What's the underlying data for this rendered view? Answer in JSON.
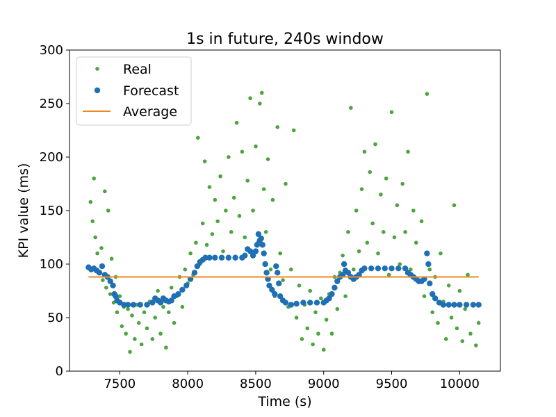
{
  "colors": {
    "real": "#4da340",
    "forecast": "#1f6fb4",
    "average": "#ef8a22",
    "axis": "#000000"
  },
  "chart_data": {
    "type": "scatter",
    "title": "1s in future, 240s window",
    "xlabel": "Time (s)",
    "ylabel": "KPI value (ms)",
    "xlim": [
      7130,
      10300
    ],
    "ylim": [
      0,
      300
    ],
    "xticks": [
      7500,
      8000,
      8500,
      9000,
      9500,
      10000
    ],
    "yticks": [
      0,
      50,
      100,
      150,
      200,
      250,
      300
    ],
    "legend_position": "top-left",
    "grid": false,
    "series": [
      {
        "name": "Real",
        "kind": "points",
        "points": [
          [
            7270,
            97
          ],
          [
            7285,
            158
          ],
          [
            7300,
            140
          ],
          [
            7310,
            180
          ],
          [
            7320,
            125
          ],
          [
            7335,
            110
          ],
          [
            7350,
            92
          ],
          [
            7365,
            115
          ],
          [
            7375,
            85
          ],
          [
            7390,
            168
          ],
          [
            7400,
            78
          ],
          [
            7415,
            150
          ],
          [
            7430,
            72
          ],
          [
            7440,
            105
          ],
          [
            7455,
            64
          ],
          [
            7470,
            88
          ],
          [
            7480,
            55
          ],
          [
            7500,
            70
          ],
          [
            7515,
            42
          ],
          [
            7530,
            60
          ],
          [
            7545,
            35
          ],
          [
            7560,
            58
          ],
          [
            7575,
            18
          ],
          [
            7590,
            52
          ],
          [
            7610,
            30
          ],
          [
            7625,
            62
          ],
          [
            7640,
            45
          ],
          [
            7660,
            25
          ],
          [
            7680,
            55
          ],
          [
            7700,
            40
          ],
          [
            7720,
            65
          ],
          [
            7740,
            30
          ],
          [
            7760,
            50
          ],
          [
            7780,
            75
          ],
          [
            7800,
            35
          ],
          [
            7820,
            60
          ],
          [
            7840,
            22
          ],
          [
            7860,
            55
          ],
          [
            7880,
            78
          ],
          [
            7900,
            45
          ],
          [
            7920,
            70
          ],
          [
            7940,
            88
          ],
          [
            7960,
            60
          ],
          [
            7980,
            95
          ],
          [
            8000,
            82
          ],
          [
            8020,
            110
          ],
          [
            8040,
            90
          ],
          [
            8060,
            120
          ],
          [
            8075,
            218
          ],
          [
            8090,
            100
          ],
          [
            8110,
            138
          ],
          [
            8125,
            196
          ],
          [
            8140,
            118
          ],
          [
            8160,
            172
          ],
          [
            8180,
            128
          ],
          [
            8200,
            160
          ],
          [
            8220,
            140
          ],
          [
            8240,
            182
          ],
          [
            8260,
            112
          ],
          [
            8280,
            150
          ],
          [
            8300,
            200
          ],
          [
            8320,
            130
          ],
          [
            8340,
            162
          ],
          [
            8360,
            232
          ],
          [
            8380,
            145
          ],
          [
            8400,
            205
          ],
          [
            8420,
            125
          ],
          [
            8440,
            178
          ],
          [
            8460,
            255
          ],
          [
            8480,
            150
          ],
          [
            8500,
            210
          ],
          [
            8515,
            120
          ],
          [
            8530,
            250
          ],
          [
            8545,
            260
          ],
          [
            8560,
            170
          ],
          [
            8575,
            130
          ],
          [
            8590,
            198
          ],
          [
            8610,
            95
          ],
          [
            8625,
            160
          ],
          [
            8640,
            70
          ],
          [
            8660,
            228
          ],
          [
            8680,
            110
          ],
          [
            8700,
            85
          ],
          [
            8720,
            175
          ],
          [
            8740,
            60
          ],
          [
            8760,
            95
          ],
          [
            8780,
            225
          ],
          [
            8800,
            50
          ],
          [
            8820,
            80
          ],
          [
            8840,
            30
          ],
          [
            8860,
            62
          ],
          [
            8880,
            40
          ],
          [
            8900,
            75
          ],
          [
            8920,
            25
          ],
          [
            8940,
            55
          ],
          [
            8960,
            35
          ],
          [
            8980,
            68
          ],
          [
            9000,
            20
          ],
          [
            9020,
            48
          ],
          [
            9040,
            72
          ],
          [
            9060,
            35
          ],
          [
            9080,
            88
          ],
          [
            9100,
            58
          ],
          [
            9120,
            92
          ],
          [
            9140,
            108
          ],
          [
            9160,
            70
          ],
          [
            9180,
            130
          ],
          [
            9200,
            246
          ],
          [
            9220,
            95
          ],
          [
            9240,
            150
          ],
          [
            9260,
            112
          ],
          [
            9280,
            170
          ],
          [
            9300,
            205
          ],
          [
            9320,
            120
          ],
          [
            9340,
            186
          ],
          [
            9360,
            138
          ],
          [
            9380,
            212
          ],
          [
            9400,
            110
          ],
          [
            9420,
            165
          ],
          [
            9440,
            130
          ],
          [
            9460,
            180
          ],
          [
            9480,
            90
          ],
          [
            9500,
            242
          ],
          [
            9520,
            125
          ],
          [
            9540,
            155
          ],
          [
            9560,
            100
          ],
          [
            9580,
            175
          ],
          [
            9600,
            130
          ],
          [
            9620,
            205
          ],
          [
            9640,
            95
          ],
          [
            9660,
            150
          ],
          [
            9680,
            120
          ],
          [
            9700,
            85
          ],
          [
            9720,
            140
          ],
          [
            9740,
            70
          ],
          [
            9760,
            259
          ],
          [
            9780,
            95
          ],
          [
            9800,
            55
          ],
          [
            9820,
            88
          ],
          [
            9840,
            45
          ],
          [
            9860,
            110
          ],
          [
            9880,
            65
          ],
          [
            9900,
            30
          ],
          [
            9920,
            80
          ],
          [
            9940,
            50
          ],
          [
            9960,
            155
          ],
          [
            9980,
            40
          ],
          [
            10000,
            75
          ],
          [
            10020,
            28
          ],
          [
            10040,
            58
          ],
          [
            10060,
            90
          ],
          [
            10080,
            35
          ],
          [
            10100,
            62
          ],
          [
            10120,
            24
          ],
          [
            10140,
            45
          ]
        ]
      },
      {
        "name": "Forecast",
        "kind": "points",
        "points": [
          [
            7270,
            97
          ],
          [
            7290,
            95
          ],
          [
            7310,
            96
          ],
          [
            7330,
            94
          ],
          [
            7350,
            92
          ],
          [
            7370,
            98
          ],
          [
            7390,
            90
          ],
          [
            7410,
            88
          ],
          [
            7430,
            84
          ],
          [
            7450,
            80
          ],
          [
            7460,
            72
          ],
          [
            7470,
            70
          ],
          [
            7480,
            66
          ],
          [
            7500,
            64
          ],
          [
            7530,
            62
          ],
          [
            7560,
            62
          ],
          [
            7600,
            62
          ],
          [
            7650,
            62
          ],
          [
            7700,
            62
          ],
          [
            7740,
            64
          ],
          [
            7760,
            68
          ],
          [
            7780,
            66
          ],
          [
            7800,
            64
          ],
          [
            7820,
            68
          ],
          [
            7840,
            66
          ],
          [
            7860,
            65
          ],
          [
            7880,
            66
          ],
          [
            7900,
            70
          ],
          [
            7930,
            72
          ],
          [
            7960,
            76
          ],
          [
            7990,
            80
          ],
          [
            8020,
            86
          ],
          [
            8050,
            92
          ],
          [
            8070,
            98
          ],
          [
            8090,
            102
          ],
          [
            8110,
            104
          ],
          [
            8130,
            106
          ],
          [
            8160,
            106
          ],
          [
            8200,
            106
          ],
          [
            8250,
            106
          ],
          [
            8300,
            106
          ],
          [
            8350,
            106
          ],
          [
            8400,
            106
          ],
          [
            8420,
            108
          ],
          [
            8440,
            114
          ],
          [
            8460,
            112
          ],
          [
            8480,
            108
          ],
          [
            8500,
            112
          ],
          [
            8510,
            118
          ],
          [
            8520,
            128
          ],
          [
            8530,
            122
          ],
          [
            8540,
            124
          ],
          [
            8550,
            118
          ],
          [
            8560,
            110
          ],
          [
            8570,
            100
          ],
          [
            8580,
            92
          ],
          [
            8590,
            86
          ],
          [
            8600,
            80
          ],
          [
            8620,
            76
          ],
          [
            8640,
            72
          ],
          [
            8650,
            98
          ],
          [
            8660,
            92
          ],
          [
            8670,
            82
          ],
          [
            8680,
            70
          ],
          [
            8700,
            66
          ],
          [
            8720,
            64
          ],
          [
            8760,
            62
          ],
          [
            8800,
            63
          ],
          [
            8850,
            64
          ],
          [
            8900,
            64
          ],
          [
            8950,
            64
          ],
          [
            9000,
            64
          ],
          [
            9020,
            66
          ],
          [
            9040,
            68
          ],
          [
            9060,
            72
          ],
          [
            9080,
            78
          ],
          [
            9100,
            84
          ],
          [
            9120,
            88
          ],
          [
            9140,
            90
          ],
          [
            9150,
            100
          ],
          [
            9160,
            94
          ],
          [
            9180,
            92
          ],
          [
            9200,
            88
          ],
          [
            9220,
            86
          ],
          [
            9240,
            88
          ],
          [
            9260,
            90
          ],
          [
            9280,
            94
          ],
          [
            9300,
            96
          ],
          [
            9350,
            96
          ],
          [
            9400,
            96
          ],
          [
            9450,
            96
          ],
          [
            9500,
            96
          ],
          [
            9550,
            96
          ],
          [
            9600,
            96
          ],
          [
            9620,
            92
          ],
          [
            9640,
            90
          ],
          [
            9660,
            88
          ],
          [
            9680,
            86
          ],
          [
            9700,
            84
          ],
          [
            9720,
            84
          ],
          [
            9740,
            86
          ],
          [
            9760,
            110
          ],
          [
            9770,
            100
          ],
          [
            9780,
            82
          ],
          [
            9800,
            72
          ],
          [
            9820,
            68
          ],
          [
            9850,
            64
          ],
          [
            9880,
            62
          ],
          [
            9920,
            62
          ],
          [
            9960,
            62
          ],
          [
            10000,
            62
          ],
          [
            10050,
            62
          ],
          [
            10100,
            62
          ],
          [
            10140,
            62
          ]
        ]
      },
      {
        "name": "Average",
        "kind": "line",
        "points": [
          [
            7270,
            88
          ],
          [
            10140,
            88
          ]
        ]
      }
    ]
  }
}
